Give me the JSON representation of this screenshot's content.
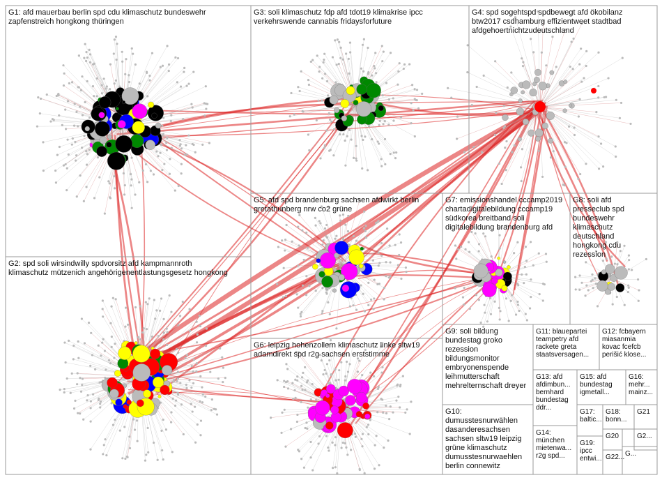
{
  "groups": [
    {
      "lines": [
        "G1: afd mauerbau berlin spd cdu klimaschutz bundeswehr",
        "zapfenstreich hongkong thüringen"
      ]
    },
    {
      "lines": [
        "G2: spd soli wirsindwilly spdvorsitz afd kampmannroth",
        "klimaschutz mützenich angehörigenentlastungsgesetz hongkong"
      ]
    },
    {
      "lines": [
        "G3: soli klimaschutz fdp afd tdot19 klimakrise ipcc",
        "verkehrswende cannabis fridaysforfuture"
      ]
    },
    {
      "lines": [
        "G4: spd sogehtspd spdbewegt afd ökobilanz",
        "btw2017 csdhamburg effizientweet stadtbad",
        "afdgehoertnichtzudeutschland"
      ]
    },
    {
      "lines": [
        "G5: afd spd brandenburg sachsen afdwirkt berlin",
        "gretathunberg nrw co2 grüne"
      ]
    },
    {
      "lines": [
        "G6: leipzig hohenzollern klimaschutz linke sltw19",
        "adamdirekt spd r2g sachsen erststimme"
      ]
    },
    {
      "lines": [
        "G7: emissionshandel cccamp2019",
        "chartadigitalebildung cccamp19",
        "südkorea breitband soli",
        "digitalebildung brandenburg afd"
      ]
    },
    {
      "lines": [
        "G8: soli afd",
        "presseclub spd",
        "bundeswehr",
        "klimaschutz",
        "deutschland",
        "hongkong cdu",
        "rezession"
      ]
    },
    {
      "lines": [
        "G9: soli bildung",
        "bundestag groko",
        "rezession",
        "bildungsmonitor",
        "embryonenspende",
        "leihmutterschaft",
        "mehrelternschaft dreyer"
      ]
    },
    {
      "lines": [
        "G10:",
        "dumusstesnurwählen",
        "dasanderesachsen",
        "sachsen sltw19 leipzig",
        "grüne klimaschutz",
        "dumusstesnurwaehlen",
        "berlin connewitz"
      ]
    },
    {
      "lines": [
        "G11: blauepartei",
        "teampetry afd",
        "rackete greta",
        "staatsversagen..."
      ]
    },
    {
      "lines": [
        "G12: fcbayern",
        "miasanmia",
        "kovac fcefcb",
        "perišić klose..."
      ]
    },
    {
      "lines": [
        "G13: afd",
        "afdimbun...",
        "bernhard",
        "bundestag",
        "ddr..."
      ]
    },
    {
      "lines": [
        "G14:",
        "münchen",
        "mietenwa...",
        "r2g spd..."
      ]
    },
    {
      "lines": [
        "G15: afd",
        "bundestag",
        "igmetall..."
      ]
    },
    {
      "lines": [
        "G16:",
        "mehr...",
        "mainz..."
      ]
    },
    {
      "lines": [
        "G17:",
        "baltic..."
      ]
    },
    {
      "lines": [
        "G18:",
        "bonn..."
      ]
    },
    {
      "lines": [
        "G19:",
        "ipcc",
        "entwi..."
      ]
    },
    {
      "lines": [
        "G20"
      ]
    },
    {
      "lines": [
        "G21"
      ]
    },
    {
      "lines": [
        "G22..."
      ]
    },
    {
      "lines": [
        "G2..."
      ]
    },
    {
      "lines": [
        "G..."
      ]
    }
  ]
}
